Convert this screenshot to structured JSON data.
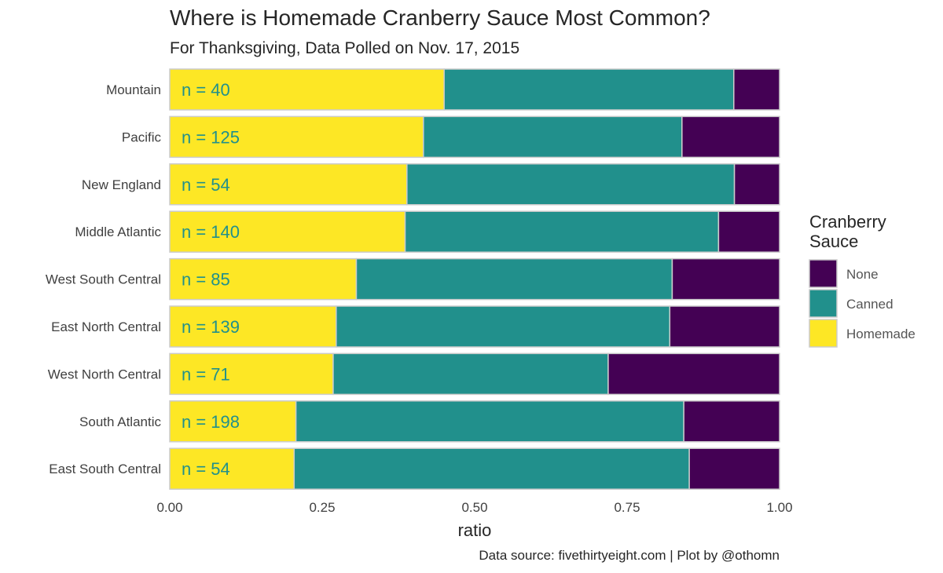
{
  "chart_data": {
    "type": "bar",
    "orientation": "horizontal",
    "stacked": true,
    "title": "Where is Homemade Cranberry Sauce Most Common?",
    "subtitle": "For Thanksgiving, Data Polled on Nov. 17, 2015",
    "xlabel": "ratio",
    "ylabel": "",
    "caption": "Data source: fivethirtyeight.com | Plot by @othomn",
    "xlim": [
      0,
      1
    ],
    "x_ticks": [
      "0.00",
      "0.25",
      "0.50",
      "0.75",
      "1.00"
    ],
    "x_tick_values": [
      0,
      0.25,
      0.5,
      0.75,
      1.0
    ],
    "categories": [
      "Mountain",
      "Pacific",
      "New England",
      "Middle Atlantic",
      "West South Central",
      "East North Central",
      "West North Central",
      "South Atlantic",
      "East South Central"
    ],
    "n_labels": [
      "n = 40",
      "n = 125",
      "n = 54",
      "n = 140",
      "n = 85",
      "n = 139",
      "n = 71",
      "n = 198",
      "n = 54"
    ],
    "series": [
      {
        "name": "Homemade",
        "color": "#FDE725",
        "values": [
          0.45,
          0.416,
          0.389,
          0.386,
          0.306,
          0.273,
          0.268,
          0.207,
          0.204
        ]
      },
      {
        "name": "Canned",
        "color": "#21908C",
        "values": [
          0.475,
          0.424,
          0.537,
          0.514,
          0.518,
          0.547,
          0.451,
          0.636,
          0.648
        ]
      },
      {
        "name": "None",
        "color": "#440154",
        "values": [
          0.075,
          0.16,
          0.074,
          0.1,
          0.176,
          0.18,
          0.281,
          0.157,
          0.148
        ]
      }
    ],
    "legend": {
      "title": "Cranberry Sauce",
      "title_lines": [
        "Cranberry",
        "Sauce"
      ],
      "placement": "right",
      "items": [
        {
          "label": "None",
          "color": "#440154"
        },
        {
          "label": "Canned",
          "color": "#21908C"
        },
        {
          "label": "Homemade",
          "color": "#FDE725"
        }
      ]
    },
    "n_label_color": "#21908C",
    "bar_outline_color": "#CCCCCC",
    "grid": false
  }
}
